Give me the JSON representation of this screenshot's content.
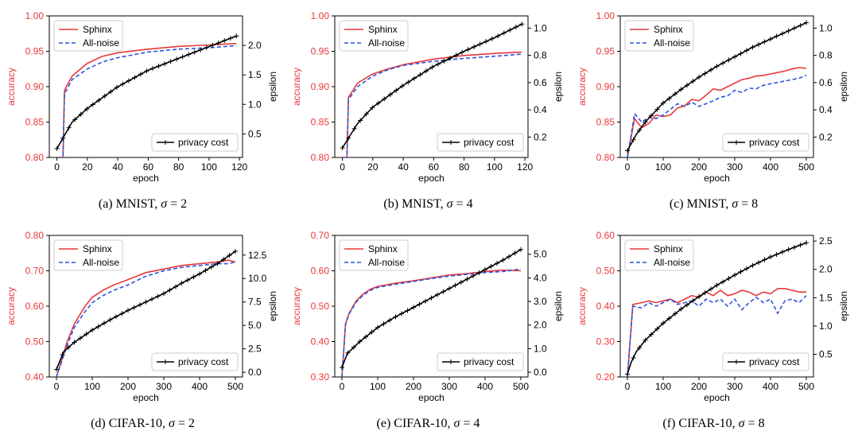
{
  "colors": {
    "sphinx": "#e8383b",
    "all_noise": "#2c54e0",
    "privacy": "#000000",
    "acc_label": "#e8383b"
  },
  "legend_labels": {
    "sphinx": "Sphinx",
    "all_noise": "All-noise",
    "privacy": "privacy cost"
  },
  "chart_data": [
    {
      "type": "line",
      "caption": {
        "prefix": "(a) MNIST,",
        "sigma": "σ",
        "suffix": " = 2"
      },
      "xlabel": "epoch",
      "ylabel": "accuracy",
      "y2label": "epsilon",
      "xlim": [
        -5,
        122
      ],
      "xticks": [
        0,
        20,
        40,
        60,
        80,
        100,
        120
      ],
      "ylim": [
        0.8,
        1.0
      ],
      "yticks": [
        "0.80",
        "0.85",
        "0.90",
        "0.95",
        "1.00"
      ],
      "y2lim": [
        0.1,
        2.5
      ],
      "y2ticks": [
        "0.5",
        "1.0",
        "1.5",
        "2.0"
      ],
      "legend": "upper-left",
      "legend2": "lower-right",
      "series": [
        {
          "name": "Sphinx",
          "axis": "left",
          "style": "solid",
          "x": [
            1,
            4,
            5,
            10,
            20,
            30,
            40,
            60,
            80,
            100,
            118
          ],
          "y": [
            0.8,
            0.8,
            0.895,
            0.915,
            0.933,
            0.943,
            0.948,
            0.953,
            0.957,
            0.959,
            0.961
          ]
        },
        {
          "name": "All-noise",
          "axis": "left",
          "style": "dashed",
          "x": [
            1,
            4,
            5,
            10,
            20,
            30,
            40,
            60,
            80,
            100,
            118
          ],
          "y": [
            0.8,
            0.8,
            0.89,
            0.91,
            0.925,
            0.935,
            0.941,
            0.949,
            0.953,
            0.955,
            0.958
          ]
        },
        {
          "name": "privacy cost",
          "axis": "right",
          "style": "plus",
          "x": [
            0,
            10,
            20,
            40,
            60,
            80,
            100,
            118
          ],
          "y": [
            0.25,
            0.7,
            0.93,
            1.3,
            1.58,
            1.78,
            1.98,
            2.16
          ]
        }
      ]
    },
    {
      "type": "line",
      "caption": {
        "prefix": "(b) MNIST,",
        "sigma": "σ",
        "suffix": " = 4"
      },
      "xlabel": "epoch",
      "ylabel": "accuracy",
      "y2label": "epsilon",
      "xlim": [
        -5,
        122
      ],
      "xticks": [
        0,
        20,
        40,
        60,
        80,
        100,
        120
      ],
      "ylim": [
        0.8,
        1.0
      ],
      "yticks": [
        "0.80",
        "0.85",
        "0.90",
        "0.95",
        "1.00"
      ],
      "y2lim": [
        0.05,
        1.09
      ],
      "y2ticks": [
        "0.2",
        "0.4",
        "0.6",
        "0.8",
        "1.0"
      ],
      "legend": "upper-left",
      "legend2": "lower-right",
      "series": [
        {
          "name": "Sphinx",
          "axis": "left",
          "style": "solid",
          "x": [
            1,
            3,
            4,
            10,
            20,
            30,
            40,
            60,
            80,
            100,
            118
          ],
          "y": [
            0.8,
            0.8,
            0.885,
            0.905,
            0.918,
            0.925,
            0.931,
            0.939,
            0.944,
            0.947,
            0.949
          ]
        },
        {
          "name": "All-noise",
          "axis": "left",
          "style": "dashed",
          "x": [
            1,
            3,
            4,
            10,
            20,
            30,
            40,
            60,
            80,
            100,
            118
          ],
          "y": [
            0.8,
            0.8,
            0.882,
            0.9,
            0.915,
            0.924,
            0.93,
            0.936,
            0.94,
            0.943,
            0.946
          ]
        },
        {
          "name": "privacy cost",
          "axis": "right",
          "style": "plus",
          "x": [
            0,
            10,
            20,
            40,
            60,
            80,
            100,
            118
          ],
          "y": [
            0.12,
            0.3,
            0.42,
            0.58,
            0.72,
            0.83,
            0.93,
            1.03
          ]
        }
      ]
    },
    {
      "type": "line",
      "caption": {
        "prefix": "(c) MNIST,",
        "sigma": "σ",
        "suffix": " = 8"
      },
      "xlabel": "epoch",
      "ylabel": "accuracy",
      "y2label": "epsilon",
      "xlim": [
        -20,
        520
      ],
      "xticks": [
        0,
        100,
        200,
        300,
        400,
        500
      ],
      "ylim": [
        0.8,
        1.0
      ],
      "yticks": [
        "0.80",
        "0.85",
        "0.90",
        "0.95",
        "1.00"
      ],
      "y2lim": [
        0.05,
        1.09
      ],
      "y2ticks": [
        "0.2",
        "0.4",
        "0.6",
        "0.8",
        "1.0"
      ],
      "legend": "upper-left",
      "legend2": "lower-right",
      "series": [
        {
          "name": "Sphinx",
          "axis": "right",
          "style": "solid",
          "x": [
            0,
            20,
            40,
            60,
            80,
            100,
            120,
            140,
            160,
            180,
            200,
            220,
            240,
            260,
            280,
            300,
            320,
            340,
            360,
            380,
            400,
            420,
            440,
            460,
            480,
            500
          ],
          "y": [
            0.8,
            0.855,
            0.842,
            0.848,
            0.86,
            0.858,
            0.86,
            0.87,
            0.873,
            0.882,
            0.88,
            0.888,
            0.897,
            0.895,
            0.9,
            0.905,
            0.91,
            0.912,
            0.915,
            0.916,
            0.918,
            0.92,
            0.922,
            0.925,
            0.927,
            0.926
          ]
        },
        {
          "name": "All-noise",
          "axis": "left",
          "style": "dashed",
          "x": [
            0,
            20,
            40,
            60,
            80,
            100,
            120,
            140,
            160,
            180,
            200,
            220,
            240,
            260,
            280,
            300,
            320,
            340,
            360,
            380,
            400,
            420,
            440,
            460,
            480,
            500
          ],
          "y": [
            0.8,
            0.862,
            0.85,
            0.857,
            0.855,
            0.86,
            0.868,
            0.876,
            0.872,
            0.878,
            0.872,
            0.876,
            0.88,
            0.885,
            0.887,
            0.895,
            0.892,
            0.898,
            0.897,
            0.902,
            0.904,
            0.906,
            0.908,
            0.91,
            0.912,
            0.916
          ]
        },
        {
          "name": "privacy cost",
          "axis": "right",
          "style": "plus",
          "x": [
            0,
            25,
            50,
            100,
            150,
            200,
            250,
            300,
            350,
            400,
            450,
            500
          ],
          "y": [
            0.1,
            0.22,
            0.31,
            0.45,
            0.55,
            0.64,
            0.72,
            0.79,
            0.86,
            0.92,
            0.98,
            1.04
          ]
        }
      ]
    },
    {
      "type": "line",
      "caption": {
        "prefix": "(d) CIFAR-10,",
        "sigma": "σ",
        "suffix": " = 2"
      },
      "xlabel": "epoch",
      "ylabel": "accuracy",
      "y2label": "epsilon",
      "xlim": [
        -20,
        520
      ],
      "xticks": [
        0,
        100,
        200,
        300,
        400,
        500
      ],
      "ylim": [
        0.4,
        0.8
      ],
      "yticks": [
        "0.40",
        "0.50",
        "0.60",
        "0.70",
        "0.80"
      ],
      "y2lim": [
        -0.5,
        14.6
      ],
      "y2ticks": [
        "0.0",
        "2.5",
        "5.0",
        "7.5",
        "10.0",
        "12.5"
      ],
      "legend": "upper-left",
      "legend2": "lower-right",
      "series": [
        {
          "name": "Sphinx",
          "axis": "left",
          "style": "solid",
          "x": [
            0,
            15,
            30,
            50,
            80,
            100,
            130,
            160,
            200,
            250,
            300,
            350,
            400,
            450,
            480,
            500
          ],
          "y": [
            0.4,
            0.45,
            0.5,
            0.55,
            0.6,
            0.625,
            0.645,
            0.66,
            0.675,
            0.695,
            0.705,
            0.715,
            0.72,
            0.725,
            0.73,
            0.725
          ]
        },
        {
          "name": "All-noise",
          "axis": "left",
          "style": "dashed",
          "x": [
            0,
            15,
            30,
            50,
            80,
            100,
            130,
            160,
            200,
            250,
            300,
            350,
            400,
            450,
            480,
            500
          ],
          "y": [
            0.4,
            0.445,
            0.49,
            0.54,
            0.585,
            0.61,
            0.63,
            0.645,
            0.66,
            0.685,
            0.7,
            0.71,
            0.715,
            0.72,
            0.72,
            0.725
          ]
        },
        {
          "name": "privacy cost",
          "axis": "right",
          "style": "plus",
          "x": [
            0,
            20,
            50,
            100,
            150,
            200,
            250,
            300,
            350,
            400,
            450,
            500
          ],
          "y": [
            0.3,
            2.2,
            3.2,
            4.5,
            5.6,
            6.6,
            7.5,
            8.4,
            9.5,
            10.5,
            11.6,
            12.9
          ]
        }
      ]
    },
    {
      "type": "line",
      "caption": {
        "prefix": "(e) CIFAR-10,",
        "sigma": "σ",
        "suffix": " = 4"
      },
      "xlabel": "epoch",
      "ylabel": "accuracy",
      "y2label": "epsilon",
      "xlim": [
        -20,
        520
      ],
      "xticks": [
        0,
        100,
        200,
        300,
        400,
        500
      ],
      "ylim": [
        0.3,
        0.7
      ],
      "yticks": [
        "0.30",
        "0.40",
        "0.50",
        "0.60",
        "0.70"
      ],
      "y2lim": [
        -0.2,
        5.8
      ],
      "y2ticks": [
        "0.0",
        "1.0",
        "2.0",
        "3.0",
        "4.0",
        "5.0"
      ],
      "legend": "upper-left",
      "legend2": "lower-right",
      "series": [
        {
          "name": "Sphinx",
          "axis": "left",
          "style": "solid",
          "x": [
            0,
            10,
            20,
            40,
            60,
            80,
            100,
            150,
            200,
            250,
            300,
            350,
            400,
            450,
            500
          ],
          "y": [
            0.3,
            0.45,
            0.48,
            0.515,
            0.535,
            0.548,
            0.556,
            0.565,
            0.572,
            0.58,
            0.588,
            0.592,
            0.598,
            0.602,
            0.6
          ]
        },
        {
          "name": "All-noise",
          "axis": "left",
          "style": "dashed",
          "x": [
            0,
            10,
            20,
            40,
            60,
            80,
            100,
            150,
            200,
            250,
            300,
            350,
            400,
            450,
            500
          ],
          "y": [
            0.3,
            0.448,
            0.478,
            0.512,
            0.532,
            0.545,
            0.553,
            0.562,
            0.57,
            0.578,
            0.585,
            0.59,
            0.595,
            0.598,
            0.605
          ]
        },
        {
          "name": "privacy cost",
          "axis": "right",
          "style": "plus",
          "x": [
            0,
            15,
            50,
            100,
            150,
            200,
            250,
            300,
            350,
            400,
            450,
            500
          ],
          "y": [
            0.2,
            0.8,
            1.3,
            1.9,
            2.35,
            2.75,
            3.15,
            3.55,
            3.95,
            4.35,
            4.75,
            5.2
          ]
        }
      ]
    },
    {
      "type": "line",
      "caption": {
        "prefix": "(f) CIFAR-10,",
        "sigma": "σ",
        "suffix": " = 8"
      },
      "xlabel": "epoch",
      "ylabel": "accuracy",
      "y2label": "epsilon",
      "xlim": [
        -20,
        520
      ],
      "xticks": [
        0,
        100,
        200,
        300,
        400,
        500
      ],
      "ylim": [
        0.2,
        0.6
      ],
      "yticks": [
        "0.20",
        "0.30",
        "0.40",
        "0.50",
        "0.60"
      ],
      "y2lim": [
        0.1,
        2.6
      ],
      "y2ticks": [
        "0.5",
        "1.0",
        "1.5",
        "2.0",
        "2.5"
      ],
      "legend": "upper-left",
      "legend2": "lower-right",
      "series": [
        {
          "name": "Sphinx",
          "axis": "left",
          "style": "solid",
          "x": [
            0,
            15,
            40,
            60,
            80,
            100,
            120,
            140,
            160,
            180,
            200,
            220,
            240,
            260,
            280,
            300,
            320,
            340,
            360,
            380,
            400,
            420,
            440,
            460,
            480,
            500
          ],
          "y": [
            0.2,
            0.405,
            0.41,
            0.415,
            0.41,
            0.415,
            0.42,
            0.41,
            0.42,
            0.43,
            0.425,
            0.44,
            0.43,
            0.445,
            0.43,
            0.435,
            0.445,
            0.44,
            0.43,
            0.44,
            0.435,
            0.45,
            0.45,
            0.445,
            0.44,
            0.44
          ]
        },
        {
          "name": "All-noise",
          "axis": "left",
          "style": "dashed",
          "x": [
            0,
            15,
            40,
            60,
            80,
            100,
            120,
            140,
            160,
            180,
            200,
            220,
            240,
            260,
            280,
            300,
            320,
            340,
            360,
            380,
            400,
            420,
            440,
            460,
            480,
            500
          ],
          "y": [
            0.2,
            0.4,
            0.395,
            0.41,
            0.4,
            0.41,
            0.42,
            0.405,
            0.41,
            0.415,
            0.4,
            0.42,
            0.41,
            0.42,
            0.4,
            0.42,
            0.39,
            0.41,
            0.425,
            0.41,
            0.42,
            0.38,
            0.415,
            0.42,
            0.41,
            0.43
          ]
        },
        {
          "name": "privacy cost",
          "axis": "right",
          "style": "plus",
          "x": [
            0,
            10,
            25,
            50,
            100,
            150,
            200,
            250,
            300,
            350,
            400,
            450,
            500
          ],
          "y": [
            0.15,
            0.35,
            0.55,
            0.75,
            1.05,
            1.3,
            1.52,
            1.72,
            1.9,
            2.07,
            2.22,
            2.35,
            2.47
          ]
        }
      ]
    }
  ]
}
